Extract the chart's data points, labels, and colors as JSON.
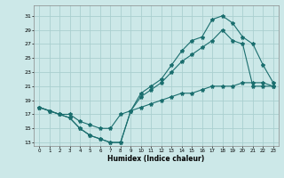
{
  "xlabel": "Humidex (Indice chaleur)",
  "bg_color": "#cce8e8",
  "grid_color": "#aacfcf",
  "line_color": "#1a6e6e",
  "xlim": [
    -0.5,
    23.5
  ],
  "ylim": [
    12.5,
    32.5
  ],
  "xticks": [
    0,
    1,
    2,
    3,
    4,
    5,
    6,
    7,
    8,
    9,
    10,
    11,
    12,
    13,
    14,
    15,
    16,
    17,
    18,
    19,
    20,
    21,
    22,
    23
  ],
  "yticks": [
    13,
    15,
    17,
    19,
    21,
    23,
    25,
    27,
    29,
    31
  ],
  "line1_x": [
    0,
    1,
    2,
    3,
    4,
    5,
    6,
    7,
    8,
    9,
    10,
    11,
    12,
    13,
    14,
    15,
    16,
    17,
    18,
    19,
    20,
    21,
    22,
    23
  ],
  "line1_y": [
    18.0,
    17.5,
    17.0,
    16.5,
    15.0,
    14.0,
    13.5,
    13.0,
    13.0,
    17.5,
    20.0,
    21.0,
    22.0,
    24.0,
    26.0,
    27.5,
    28.0,
    30.5,
    31.0,
    30.0,
    28.0,
    27.0,
    24.0,
    21.5
  ],
  "line2_x": [
    0,
    1,
    2,
    3,
    4,
    5,
    6,
    7,
    8,
    9,
    10,
    11,
    12,
    13,
    14,
    15,
    16,
    17,
    18,
    19,
    20,
    21,
    22,
    23
  ],
  "line2_y": [
    18.0,
    17.5,
    17.0,
    16.5,
    15.0,
    14.0,
    13.5,
    13.0,
    13.0,
    17.5,
    19.5,
    20.5,
    21.5,
    23.0,
    24.5,
    25.5,
    26.5,
    27.5,
    29.0,
    27.5,
    27.0,
    21.0,
    21.0,
    21.0
  ],
  "line3_x": [
    0,
    1,
    2,
    3,
    4,
    5,
    6,
    7,
    8,
    9,
    10,
    11,
    12,
    13,
    14,
    15,
    16,
    17,
    18,
    19,
    20,
    21,
    22,
    23
  ],
  "line3_y": [
    18.0,
    17.5,
    17.0,
    17.0,
    16.0,
    15.5,
    15.0,
    15.0,
    17.0,
    17.5,
    18.0,
    18.5,
    19.0,
    19.5,
    20.0,
    20.0,
    20.5,
    21.0,
    21.0,
    21.0,
    21.5,
    21.5,
    21.5,
    21.0
  ]
}
